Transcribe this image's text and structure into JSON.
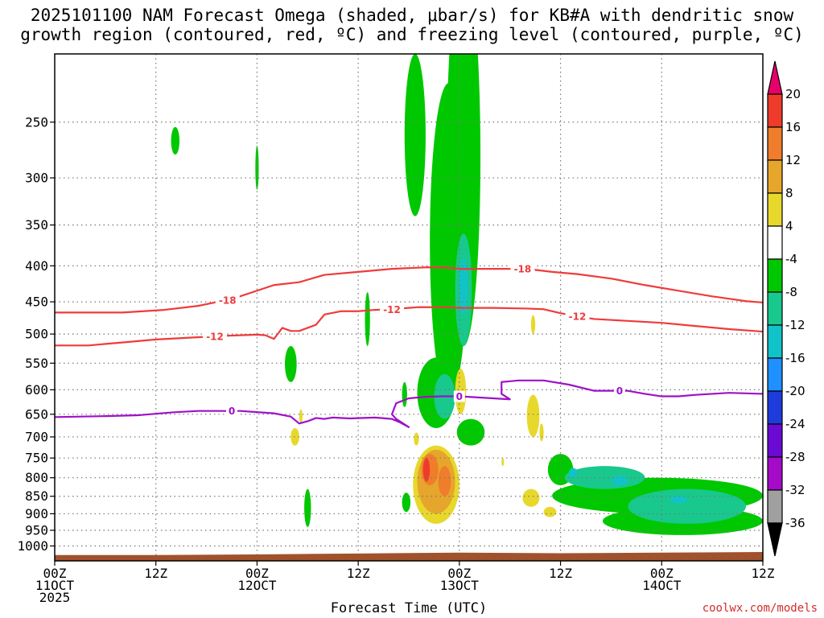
{
  "title_line1": "2025101100 NAM Forecast Omega (shaded, μbar/s) for KB#A with dendritic snow",
  "title_line2": "growth region (contoured, red, ºC) and freezing level (contoured, purple, ºC)",
  "credit": "coolwx.com/models",
  "chart_data": {
    "type": "heatmap",
    "xlabel": "Forecast Time (UTC)",
    "x_unit": "hours",
    "xlim": [
      0,
      84
    ],
    "x_ticks": [
      {
        "x": 0,
        "line1": "00Z",
        "line2": "11OCT",
        "line3": "2025"
      },
      {
        "x": 12,
        "line1": "12Z",
        "line2": "",
        "line3": ""
      },
      {
        "x": 24,
        "line1": "00Z",
        "line2": "12OCT",
        "line3": ""
      },
      {
        "x": 36,
        "line1": "12Z",
        "line2": "",
        "line3": ""
      },
      {
        "x": 48,
        "line1": "00Z",
        "line2": "13OCT",
        "line3": ""
      },
      {
        "x": 60,
        "line1": "12Z",
        "line2": "",
        "line3": ""
      },
      {
        "x": 72,
        "line1": "00Z",
        "line2": "14OCT",
        "line3": ""
      },
      {
        "x": 84,
        "line1": "12Z",
        "line2": "",
        "line3": ""
      }
    ],
    "ylabel": "",
    "y_scale": "log-pressure (hPa)",
    "ylim": [
      1050,
      200
    ],
    "y_ticks": [
      250,
      300,
      350,
      400,
      450,
      500,
      550,
      600,
      650,
      700,
      750,
      800,
      850,
      900,
      950,
      1000
    ],
    "grid": true,
    "colorbar": {
      "levels": [
        {
          "label": "20",
          "color": "#e8006a"
        },
        {
          "label": "16",
          "color": "#ef3b2c"
        },
        {
          "label": "12",
          "color": "#f07d2b"
        },
        {
          "label": "8",
          "color": "#e6a52b"
        },
        {
          "label": "4",
          "color": "#e8d82c"
        },
        {
          "label": "-4",
          "color": "#ffffff"
        },
        {
          "label": "-8",
          "color": "#00c800"
        },
        {
          "label": "-12",
          "color": "#19c88c"
        },
        {
          "label": "-16",
          "color": "#11c3c8"
        },
        {
          "label": "-20",
          "color": "#1e90ff"
        },
        {
          "label": "-24",
          "color": "#1e3cdc"
        },
        {
          "label": "-28",
          "color": "#6a0ad2"
        },
        {
          "label": "-32",
          "color": "#a50ac8"
        },
        {
          "label": "-36",
          "color": "#a0a0a0"
        }
      ],
      "bottom_color": "#000000"
    },
    "contours": [
      {
        "name": "-18",
        "color": "#ef3b3b",
        "label_x": [
          20.5,
          55.5
        ],
        "points": [
          [
            0,
            466
          ],
          [
            8,
            466
          ],
          [
            13,
            462
          ],
          [
            17,
            456
          ],
          [
            21,
            446
          ],
          [
            26,
            426
          ],
          [
            29,
            422
          ],
          [
            32,
            412
          ],
          [
            36,
            408
          ],
          [
            40,
            404
          ],
          [
            44,
            402
          ],
          [
            46,
            402
          ],
          [
            48,
            404
          ],
          [
            52,
            404
          ],
          [
            56,
            404
          ],
          [
            59,
            408
          ],
          [
            62,
            411
          ],
          [
            66,
            417
          ],
          [
            70,
            426
          ],
          [
            74,
            434
          ],
          [
            78,
            442
          ],
          [
            82,
            449
          ],
          [
            84,
            451
          ]
        ]
      },
      {
        "name": "-12",
        "color": "#ef3b3b",
        "label_x": [
          19,
          40,
          62
        ],
        "points": [
          [
            0,
            519
          ],
          [
            4,
            519
          ],
          [
            8,
            514
          ],
          [
            12,
            509
          ],
          [
            16,
            506
          ],
          [
            20,
            503
          ],
          [
            24,
            501
          ],
          [
            25,
            502
          ],
          [
            26,
            508
          ],
          [
            26.5,
            499
          ],
          [
            27,
            490
          ],
          [
            28,
            495
          ],
          [
            29,
            495
          ],
          [
            30,
            490
          ],
          [
            31,
            485
          ],
          [
            32,
            469
          ],
          [
            34,
            464
          ],
          [
            36,
            464
          ],
          [
            38,
            462
          ],
          [
            40,
            461
          ],
          [
            43,
            458
          ],
          [
            46,
            458
          ],
          [
            48,
            459
          ],
          [
            52,
            459
          ],
          [
            56,
            460
          ],
          [
            58,
            461
          ],
          [
            60,
            467
          ],
          [
            62,
            472
          ],
          [
            64,
            476
          ],
          [
            68,
            479
          ],
          [
            72,
            482
          ],
          [
            76,
            487
          ],
          [
            80,
            492
          ],
          [
            84,
            496
          ]
        ]
      },
      {
        "name": "0",
        "color": "#9f10c8",
        "label_x": [
          21,
          48,
          67
        ],
        "points": [
          [
            0,
            656
          ],
          [
            6,
            654
          ],
          [
            10,
            652
          ],
          [
            14,
            646
          ],
          [
            17,
            643
          ],
          [
            22,
            643
          ],
          [
            26,
            648
          ],
          [
            28,
            655
          ],
          [
            29,
            670
          ],
          [
            30,
            665
          ],
          [
            31,
            658
          ],
          [
            32,
            660
          ],
          [
            33,
            657
          ],
          [
            35,
            659
          ],
          [
            38,
            657
          ],
          [
            40,
            660
          ],
          [
            41,
            668
          ],
          [
            42,
            678
          ],
          [
            40.5,
            660
          ],
          [
            40,
            650
          ],
          [
            40.5,
            627
          ],
          [
            42,
            617
          ],
          [
            44,
            614
          ],
          [
            46,
            613
          ],
          [
            48,
            613
          ],
          [
            50,
            615
          ],
          [
            52,
            617
          ],
          [
            54,
            619
          ],
          [
            53,
            608
          ],
          [
            53,
            585
          ],
          [
            55,
            582
          ],
          [
            58,
            582
          ],
          [
            61,
            590
          ],
          [
            64,
            602
          ],
          [
            68,
            602
          ],
          [
            70,
            608
          ],
          [
            72,
            613
          ],
          [
            74,
            613
          ],
          [
            76,
            610
          ],
          [
            78,
            608
          ],
          [
            80,
            606
          ],
          [
            84,
            608
          ]
        ]
      }
    ],
    "blobs": [
      {
        "level": "-8",
        "x": [
          13.8,
          14.8
        ],
        "p": [
          254,
          278
        ]
      },
      {
        "level": "-8",
        "x": [
          23.8,
          24.2
        ],
        "p": [
          270,
          312
        ]
      },
      {
        "level": "-8",
        "x": [
          27.3,
          28.7
        ],
        "p": [
          520,
          585
        ]
      },
      {
        "level": "-8",
        "x": [
          36.8,
          37.4
        ],
        "p": [
          436,
          520
        ]
      },
      {
        "level": "-8",
        "x": [
          41.2,
          41.8
        ],
        "p": [
          585,
          635
        ]
      },
      {
        "level": "-8",
        "x": [
          41.2,
          42.2
        ],
        "p": [
          840,
          895
        ]
      },
      {
        "level": "-8",
        "x": [
          29.6,
          30.4
        ],
        "p": [
          830,
          940
        ]
      },
      {
        "level": "-8",
        "x": [
          41.5,
          44
        ],
        "p": [
          200,
          340
        ]
      },
      {
        "level": "-8",
        "x": [
          43,
          47.5
        ],
        "p": [
          540,
          680
        ]
      },
      {
        "level": "-8",
        "x": [
          44.5,
          49
        ],
        "p": [
          220,
          620
        ]
      },
      {
        "level": "-8",
        "x": [
          46.5,
          50.5
        ],
        "p": [
          150,
          520
        ]
      },
      {
        "level": "-8",
        "x": [
          47.7,
          51
        ],
        "p": [
          660,
          720
        ]
      },
      {
        "level": "-8",
        "x": [
          42.8,
          44.2
        ],
        "p": [
          820,
          880
        ]
      },
      {
        "level": "-8",
        "x": [
          58.5,
          61.5
        ],
        "p": [
          740,
          820
        ]
      },
      {
        "level": "-8",
        "x": [
          59,
          84
        ],
        "p": [
          800,
          900
        ]
      },
      {
        "level": "-8",
        "x": [
          65,
          84
        ],
        "p": [
          880,
          965
        ]
      },
      {
        "level": "-8",
        "x": [
          79.5,
          81.5
        ],
        "p": [
          840,
          880
        ]
      },
      {
        "level": "-12",
        "x": [
          45,
          47.5
        ],
        "p": [
          570,
          660
        ]
      },
      {
        "level": "-12",
        "x": [
          47.5,
          49.5
        ],
        "p": [
          360,
          520
        ]
      },
      {
        "level": "-12",
        "x": [
          60.5,
          70
        ],
        "p": [
          770,
          830
        ]
      },
      {
        "level": "-12",
        "x": [
          68,
          82
        ],
        "p": [
          830,
          930
        ]
      },
      {
        "level": "-16",
        "x": [
          48,
          49
        ],
        "p": [
          390,
          470
        ]
      },
      {
        "level": "-16",
        "x": [
          61,
          62
        ],
        "p": [
          775,
          800
        ]
      },
      {
        "level": "-16",
        "x": [
          66,
          68
        ],
        "p": [
          795,
          820
        ]
      },
      {
        "level": "-16",
        "x": [
          73,
          75
        ],
        "p": [
          850,
          870
        ]
      },
      {
        "level": "4",
        "x": [
          28,
          29
        ],
        "p": [
          680,
          720
        ]
      },
      {
        "level": "4",
        "x": [
          29,
          29.4
        ],
        "p": [
          640,
          670
        ]
      },
      {
        "level": "4",
        "x": [
          42.6,
          43.2
        ],
        "p": [
          690,
          720
        ]
      },
      {
        "level": "4",
        "x": [
          47.5,
          48.8
        ],
        "p": [
          560,
          650
        ]
      },
      {
        "level": "4",
        "x": [
          56,
          57.5
        ],
        "p": [
          610,
          700
        ]
      },
      {
        "level": "4",
        "x": [
          57.5,
          58
        ],
        "p": [
          670,
          710
        ]
      },
      {
        "level": "4",
        "x": [
          56.5,
          57
        ],
        "p": [
          470,
          500
        ]
      },
      {
        "level": "4",
        "x": [
          55.5,
          57.5
        ],
        "p": [
          830,
          880
        ]
      },
      {
        "level": "4",
        "x": [
          58,
          59.5
        ],
        "p": [
          880,
          910
        ]
      },
      {
        "level": "4",
        "x": [
          53,
          53.3
        ],
        "p": [
          750,
          770
        ]
      },
      {
        "level": "4",
        "x": [
          42.5,
          48
        ],
        "p": [
          720,
          930
        ]
      },
      {
        "level": "8",
        "x": [
          43,
          47.5
        ],
        "p": [
          730,
          900
        ]
      },
      {
        "level": "12",
        "x": [
          43.5,
          45.5
        ],
        "p": [
          740,
          820
        ]
      },
      {
        "level": "12",
        "x": [
          45.5,
          47
        ],
        "p": [
          770,
          850
        ]
      },
      {
        "level": "16",
        "x": [
          43.7,
          44.5
        ],
        "p": [
          750,
          810
        ]
      }
    ],
    "ground": {
      "color": "#a0522d",
      "points": [
        [
          0,
          1030
        ],
        [
          12,
          1030
        ],
        [
          24,
          1028
        ],
        [
          36,
          1025
        ],
        [
          48,
          1022
        ],
        [
          60,
          1024
        ],
        [
          72,
          1022
        ],
        [
          84,
          1020
        ]
      ]
    }
  }
}
